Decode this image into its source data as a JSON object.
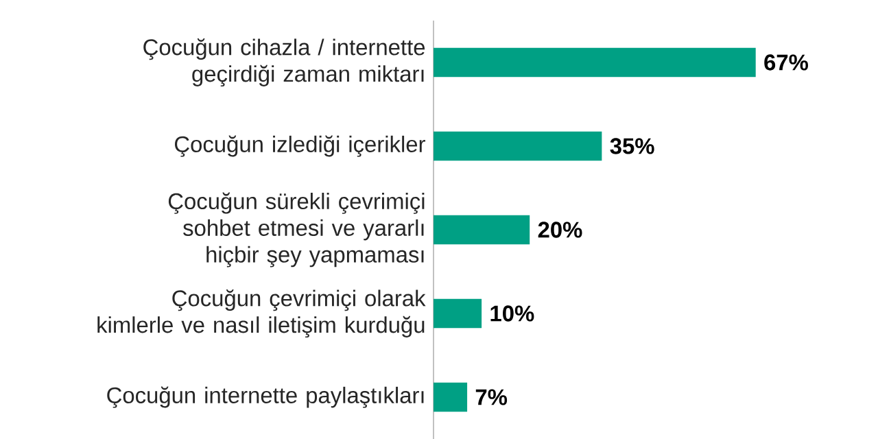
{
  "chart_data": {
    "type": "bar",
    "orientation": "horizontal",
    "categories": [
      "Çocuğun cihazla / internette geçirdiği zaman miktarı",
      "Çocuğun izlediği içerikler",
      "Çocuğun sürekli çevrimiçi sohbet etmesi ve yararlı hiçbir şey yapmaması",
      "Çocuğun çevrimiçi olarak kimlerle ve nasıl iletişim kurduğu",
      "Çocuğun internette paylaştıkları"
    ],
    "values": [
      67,
      35,
      20,
      10,
      7
    ],
    "value_labels": [
      "67%",
      "35%",
      "20%",
      "10%",
      "7%"
    ],
    "color": "#00a084"
  }
}
